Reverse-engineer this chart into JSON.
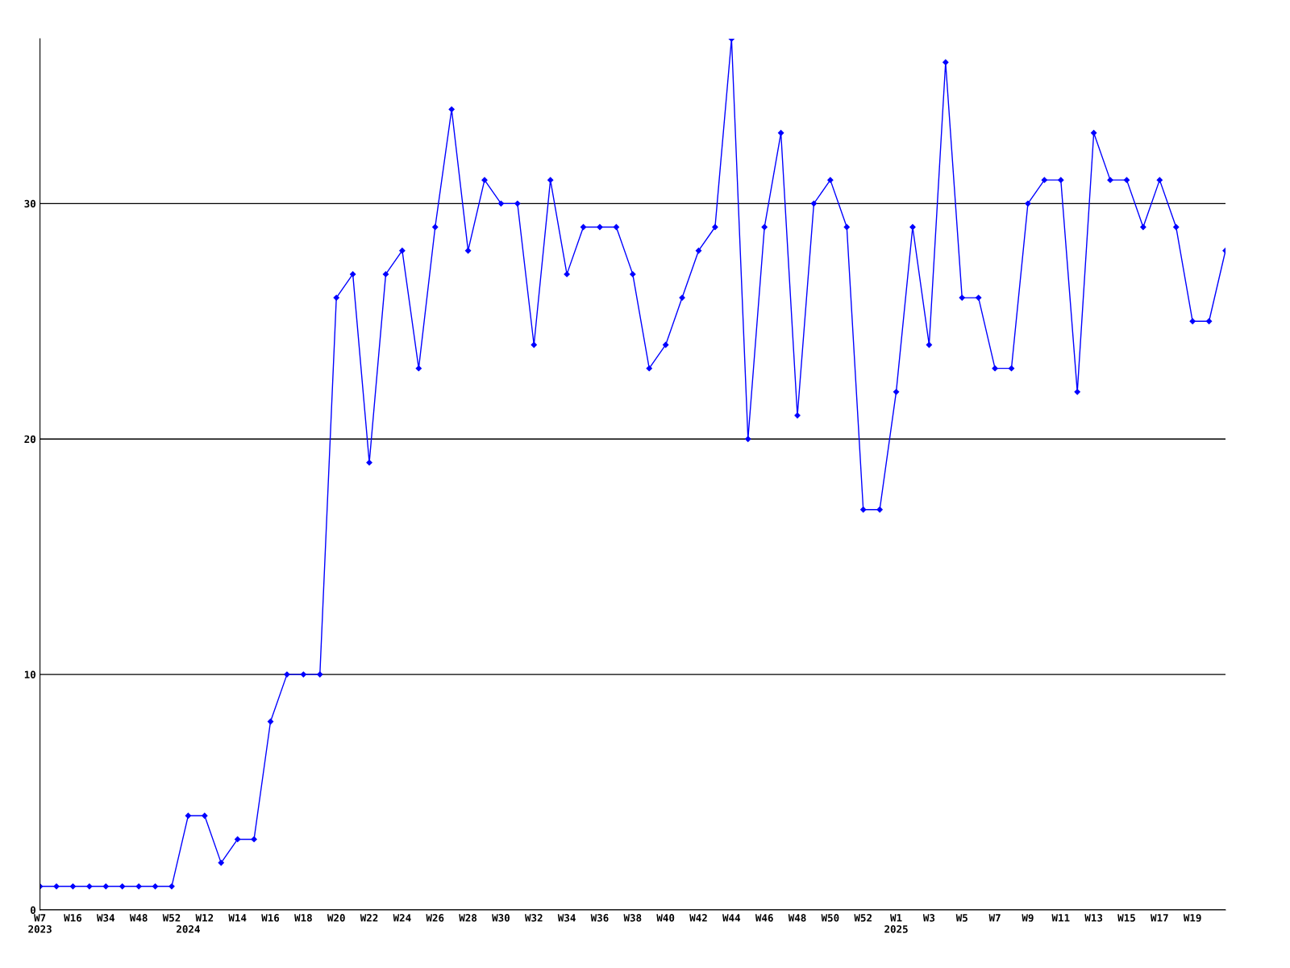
{
  "chart_data": {
    "type": "line",
    "categories": [
      "W7\n2023",
      null,
      "W16",
      null,
      "W34",
      null,
      "W48",
      null,
      "W52",
      "\n2024",
      "W12",
      null,
      "W14",
      null,
      "W16",
      null,
      "W18",
      null,
      "W20",
      null,
      "W22",
      null,
      "W24",
      null,
      "W26",
      null,
      "W28",
      null,
      "W30",
      null,
      "W32",
      null,
      "W34",
      null,
      "W36",
      null,
      "W38",
      null,
      "W40",
      null,
      "W42",
      null,
      "W44",
      null,
      "W46",
      null,
      "W48",
      null,
      "W50",
      null,
      "W52",
      null,
      "W1\n2025",
      null,
      "W3",
      null,
      "W5",
      null,
      "W7",
      null,
      "W9",
      null,
      "W11",
      null,
      "W13",
      null,
      "W15",
      null,
      "W17",
      null,
      "W19",
      null,
      null
    ],
    "series": [
      {
        "color": "#0000ff",
        "values": [
          1,
          1,
          1,
          1,
          1,
          1,
          1,
          1,
          1,
          4,
          4,
          2,
          3,
          3,
          8,
          10,
          10,
          10,
          26,
          27,
          19,
          27,
          28,
          23,
          29,
          34,
          28,
          31,
          30,
          30,
          24,
          31,
          27,
          29,
          29,
          29,
          27,
          23,
          24,
          26,
          28,
          29,
          37,
          20,
          29,
          33,
          21,
          30,
          31,
          29,
          17,
          17,
          22,
          29,
          24,
          36,
          26,
          26,
          23,
          23,
          30,
          31,
          31,
          22,
          33,
          31,
          31,
          29,
          31,
          29,
          25,
          25,
          28
        ]
      }
    ],
    "ylim": [
      0,
      37
    ],
    "yticks": [
      0,
      10,
      20,
      30
    ],
    "grid": "y",
    "marker": "diamond",
    "line_style": "solid",
    "legend": false
  }
}
